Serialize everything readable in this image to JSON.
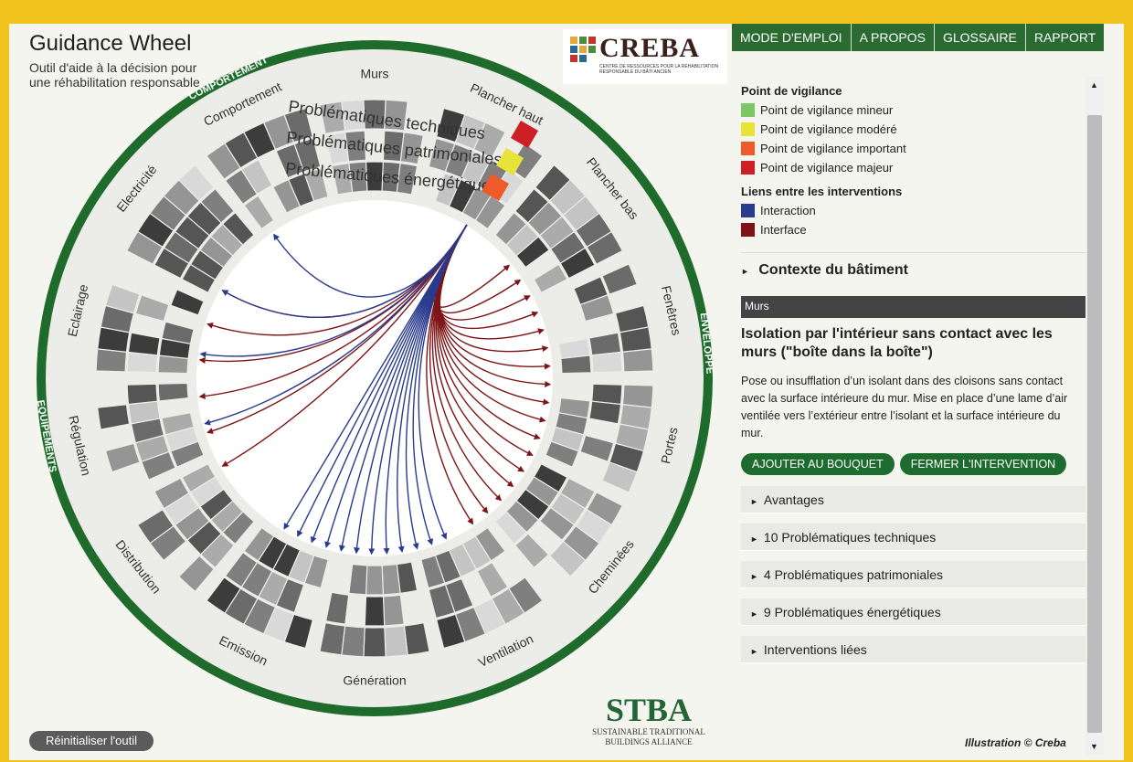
{
  "app": {
    "title": "Guidance Wheel",
    "subtitle": "Outil d'aide à la décision pour une réhabilitation responsable",
    "reset_label": "Réinitialiser l'outil"
  },
  "logo_creba": {
    "word": "CREBA",
    "tagline": "CENTRE DE RESSOURCES POUR LA RÉHABILITATION RESPONSABLE DU BÂTI ANCIEN"
  },
  "nav": {
    "items": [
      "MODE D'EMPLOI",
      "A PROPOS",
      "GLOSSAIRE",
      "RAPPORT"
    ]
  },
  "legend": {
    "vigilance_title": "Point de vigilance",
    "vigilance": [
      {
        "label": "Point de vigilance mineur",
        "color": "#7dc765"
      },
      {
        "label": "Point de vigilance modéré",
        "color": "#e7e339"
      },
      {
        "label": "Point de vigilance important",
        "color": "#ef5a2b"
      },
      {
        "label": "Point de vigilance majeur",
        "color": "#cf1f26"
      }
    ],
    "links_title": "Liens entre les interventions",
    "links": [
      {
        "label": "Interaction",
        "color": "#283b8d"
      },
      {
        "label": "Interface",
        "color": "#7e1416"
      }
    ]
  },
  "context": {
    "label": "Contexte du bâtiment"
  },
  "intervention": {
    "category": "Murs",
    "title": "Isolation par l'intérieur sans contact avec les murs (\"boîte dans la boîte\")",
    "description": "Pose ou insufflation d’un isolant dans des cloisons sans contact avec la surface intérieure du mur. Mise en place d’une lame d’air ventilée vers l’extérieur entre l’isolant et la surface intérieure du mur.",
    "add_label": "AJOUTER AU BOUQUET",
    "close_label": "FERMER L'INTERVENTION"
  },
  "accordion": [
    "Avantages",
    "10 Problématiques techniques",
    "4 Problématiques patrimoniales",
    "9 Problématiques énergétiques",
    "Interventions liées"
  ],
  "wheel": {
    "groups": [
      "COMPORTEMENT",
      "ENVELOPPE",
      "EQUIPEMENTS"
    ],
    "ring_labels": [
      "Problématiques techniques",
      "Problématiques patrimoniales",
      "Problématiques énergétiques"
    ],
    "sectors": [
      "Comportement",
      "Murs",
      "Plancher haut",
      "Plancher bas",
      "Fenêtres",
      "Portes",
      "Cheminées",
      "Ventilation",
      "Génération",
      "Emission",
      "Distribution",
      "Régulation",
      "Eclairage",
      "Electricité"
    ],
    "colors": {
      "group_ring": "#1f6b2c",
      "interaction": "#283b8d",
      "interface": "#7e1416",
      "vigilance_majeur": "#cf1f26",
      "vigilance_modere": "#e7e339",
      "vigilance_important": "#ef5a2b"
    }
  },
  "stba": {
    "title": "STBA",
    "line1": "SUSTAINABLE TRADITIONAL",
    "line2": "BUILDINGS ALLIANCE"
  },
  "credit": "Illustration © Creba",
  "scroll": {
    "up": "▲",
    "down": "▼"
  }
}
